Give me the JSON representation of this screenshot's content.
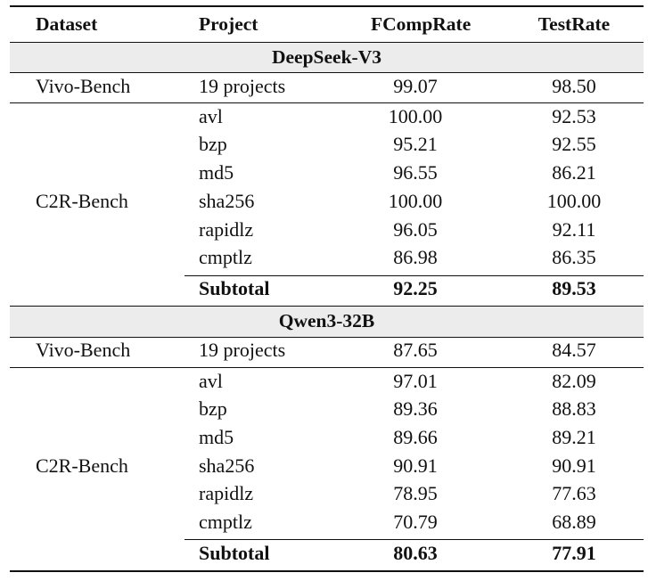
{
  "columns": [
    "Dataset",
    "Project",
    "FCompRate",
    "TestRate"
  ],
  "sections": [
    {
      "model": "DeepSeek-V3",
      "vivo": {
        "dataset": "Vivo-Bench",
        "project": "19 projects",
        "fcomp": "99.07",
        "test": "98.50"
      },
      "c2r_dataset": "C2R-Bench",
      "c2r_rows": [
        {
          "project": "avl",
          "fcomp": "100.00",
          "test": "92.53"
        },
        {
          "project": "bzp",
          "fcomp": "95.21",
          "test": "92.55"
        },
        {
          "project": "md5",
          "fcomp": "96.55",
          "test": "86.21"
        },
        {
          "project": "sha256",
          "fcomp": "100.00",
          "test": "100.00"
        },
        {
          "project": "rapidlz",
          "fcomp": "96.05",
          "test": "92.11"
        },
        {
          "project": "cmptlz",
          "fcomp": "86.98",
          "test": "86.35"
        }
      ],
      "subtotal": {
        "label": "Subtotal",
        "fcomp": "92.25",
        "test": "89.53"
      }
    },
    {
      "model": "Qwen3-32B",
      "vivo": {
        "dataset": "Vivo-Bench",
        "project": "19 projects",
        "fcomp": "87.65",
        "test": "84.57"
      },
      "c2r_dataset": "C2R-Bench",
      "c2r_rows": [
        {
          "project": "avl",
          "fcomp": "97.01",
          "test": "82.09"
        },
        {
          "project": "bzp",
          "fcomp": "89.36",
          "test": "88.83"
        },
        {
          "project": "md5",
          "fcomp": "89.66",
          "test": "89.21"
        },
        {
          "project": "sha256",
          "fcomp": "90.91",
          "test": "90.91"
        },
        {
          "project": "rapidlz",
          "fcomp": "78.95",
          "test": "77.63"
        },
        {
          "project": "cmptlz",
          "fcomp": "70.79",
          "test": "68.89"
        }
      ],
      "subtotal": {
        "label": "Subtotal",
        "fcomp": "80.63",
        "test": "77.91"
      }
    }
  ]
}
